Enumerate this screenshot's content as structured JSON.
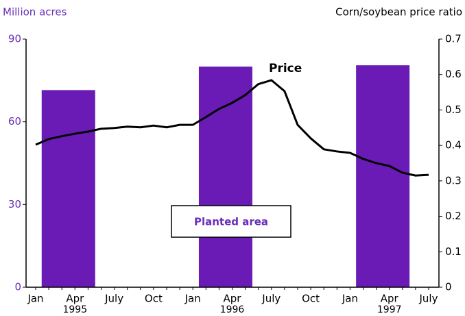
{
  "chart_data": {
    "type": "bar_line",
    "y_axis_label": "Million acres",
    "y2_axis_label": "Corn/soybean price ratio",
    "categories": [
      "Jan",
      null,
      null,
      "Apr",
      null,
      null,
      "July",
      null,
      null,
      "Oct",
      null,
      null,
      "Jan",
      null,
      null,
      "Apr",
      null,
      null,
      "July",
      null,
      null,
      "Oct",
      null,
      null,
      "Jan",
      null,
      null,
      "Apr",
      null,
      null,
      "July"
    ],
    "category_years": [
      null,
      null,
      null,
      "1995",
      null,
      null,
      null,
      null,
      null,
      null,
      null,
      null,
      null,
      null,
      null,
      "1996",
      null,
      null,
      null,
      null,
      null,
      null,
      null,
      null,
      null,
      null,
      null,
      "1997",
      null,
      null,
      null
    ],
    "series": [
      {
        "name": "Planted area",
        "type": "bar",
        "color": "#6a1bb5",
        "values": [
          null,
          null,
          71.5,
          null,
          null,
          null,
          null,
          null,
          null,
          null,
          null,
          null,
          null,
          null,
          80,
          null,
          null,
          null,
          null,
          null,
          null,
          null,
          null,
          null,
          null,
          null,
          80.5,
          null,
          null,
          null,
          null
        ]
      },
      {
        "name": "Price",
        "type": "line",
        "axis": "y2",
        "color": "#000000",
        "values": [
          0.402,
          0.418,
          0.426,
          0.433,
          0.439,
          0.447,
          0.449,
          0.453,
          0.451,
          0.456,
          0.451,
          0.458,
          0.458,
          0.48,
          0.503,
          0.52,
          0.542,
          0.573,
          0.584,
          0.553,
          0.458,
          0.42,
          0.389,
          0.383,
          0.379,
          0.362,
          0.35,
          0.342,
          0.323,
          0.315,
          0.317
        ]
      }
    ],
    "ylim": [
      0,
      90
    ],
    "yticks": [
      0,
      30,
      60,
      90
    ],
    "y2lim": [
      0,
      0.7
    ],
    "y2ticks": [
      0,
      0.1,
      0.2,
      0.3,
      0.4,
      0.5,
      0.6,
      0.7
    ]
  }
}
